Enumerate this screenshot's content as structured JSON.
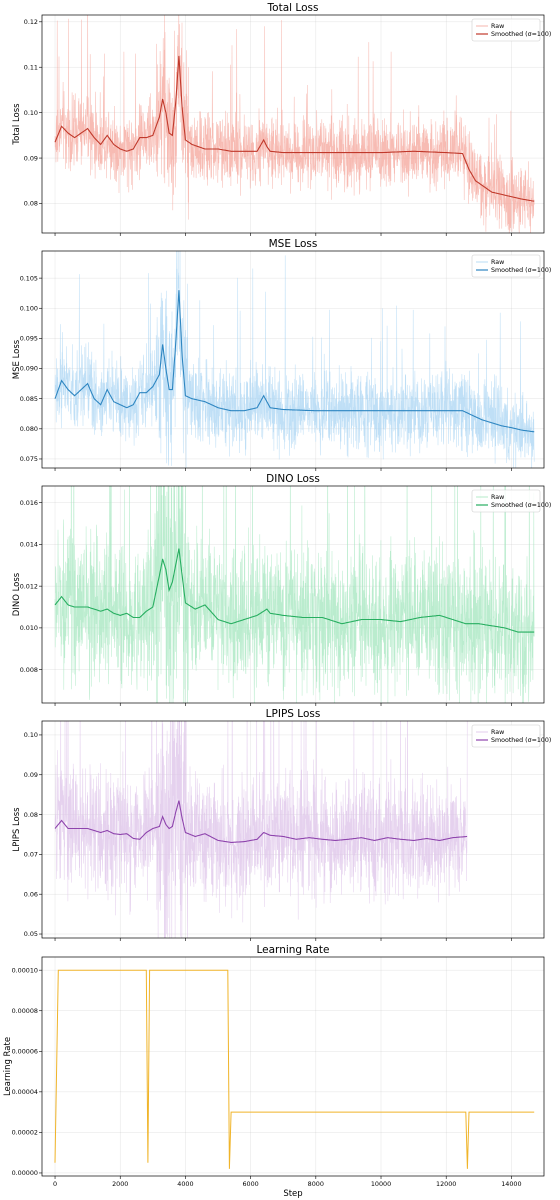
{
  "chart_data": [
    {
      "type": "line",
      "title": "Total Loss",
      "xlabel": "",
      "ylabel": "Total Loss",
      "xlim": [
        -400,
        15000
      ],
      "ylim": [
        0.0735,
        0.1215
      ],
      "yticks": [
        "0.08",
        "0.09",
        "0.10",
        "0.11",
        "0.12"
      ],
      "xticks_labeled": false,
      "grid": true,
      "legend": {
        "placement": "top-right",
        "entries": [
          "Raw",
          "Smoothed (σ=100)"
        ]
      },
      "raw_color": "#f4a49a",
      "smooth_color": "#c0392b",
      "raw_spread": 0.0065,
      "x_end": 14700,
      "series": [
        {
          "name": "Smoothed (σ=100)",
          "x": [
            0,
            200,
            400,
            600,
            800,
            1000,
            1200,
            1400,
            1600,
            1800,
            2000,
            2200,
            2400,
            2600,
            2800,
            3000,
            3200,
            3300,
            3400,
            3500,
            3600,
            3700,
            3800,
            3900,
            4000,
            4200,
            4600,
            5000,
            5400,
            5800,
            6200,
            6400,
            6500,
            6600,
            7000,
            8000,
            9000,
            10000,
            11000,
            12000,
            12500,
            12700,
            12900,
            13100,
            13400,
            13700,
            14000,
            14300,
            14700
          ],
          "y": [
            0.0935,
            0.097,
            0.0955,
            0.0945,
            0.0955,
            0.0965,
            0.0945,
            0.093,
            0.095,
            0.093,
            0.092,
            0.0915,
            0.092,
            0.0945,
            0.0945,
            0.095,
            0.099,
            0.103,
            0.1,
            0.0955,
            0.095,
            0.102,
            0.1125,
            0.101,
            0.094,
            0.093,
            0.092,
            0.092,
            0.0915,
            0.0915,
            0.0915,
            0.094,
            0.0925,
            0.0915,
            0.0912,
            0.0912,
            0.0912,
            0.0912,
            0.0915,
            0.0912,
            0.091,
            0.0875,
            0.085,
            0.084,
            0.0825,
            0.082,
            0.0815,
            0.081,
            0.0805
          ]
        }
      ]
    },
    {
      "type": "line",
      "title": "MSE Loss",
      "xlabel": "",
      "ylabel": "MSE Loss",
      "xlim": [
        -400,
        15000
      ],
      "ylim": [
        0.0735,
        0.1095
      ],
      "yticks": [
        "0.075",
        "0.080",
        "0.085",
        "0.090",
        "0.095",
        "0.100",
        "0.105"
      ],
      "xticks_labeled": false,
      "grid": true,
      "legend": {
        "placement": "top-right",
        "entries": [
          "Raw",
          "Smoothed (σ=100)"
        ]
      },
      "raw_color": "#a9d4f3",
      "smooth_color": "#2e86c1",
      "raw_spread": 0.0052,
      "x_end": 14700,
      "series": [
        {
          "name": "Smoothed (σ=100)",
          "x": [
            0,
            200,
            400,
            600,
            800,
            1000,
            1200,
            1400,
            1600,
            1800,
            2000,
            2200,
            2400,
            2600,
            2800,
            3000,
            3200,
            3300,
            3400,
            3500,
            3600,
            3700,
            3800,
            3900,
            4000,
            4200,
            4600,
            5000,
            5400,
            5800,
            6200,
            6400,
            6500,
            6600,
            7000,
            8000,
            9000,
            10000,
            11000,
            12000,
            12500,
            12700,
            12900,
            13100,
            13400,
            13700,
            14000,
            14300,
            14700
          ],
          "y": [
            0.085,
            0.088,
            0.0865,
            0.0855,
            0.0865,
            0.0875,
            0.085,
            0.084,
            0.0865,
            0.0845,
            0.084,
            0.0835,
            0.084,
            0.086,
            0.086,
            0.087,
            0.089,
            0.094,
            0.09,
            0.0865,
            0.0865,
            0.094,
            0.103,
            0.092,
            0.0855,
            0.085,
            0.0845,
            0.0835,
            0.083,
            0.083,
            0.0835,
            0.0855,
            0.0845,
            0.0835,
            0.0832,
            0.083,
            0.083,
            0.083,
            0.083,
            0.083,
            0.083,
            0.0825,
            0.082,
            0.0815,
            0.081,
            0.0805,
            0.0802,
            0.0798,
            0.0795
          ]
        }
      ]
    },
    {
      "type": "line",
      "title": "DINO Loss",
      "xlabel": "",
      "ylabel": "DINO Loss",
      "xlim": [
        -400,
        15000
      ],
      "ylim": [
        0.0064,
        0.0168
      ],
      "yticks": [
        "0.008",
        "0.010",
        "0.012",
        "0.014",
        "0.016"
      ],
      "xticks_labeled": false,
      "grid": true,
      "legend": {
        "placement": "top-right",
        "entries": [
          "Raw",
          "Smoothed (σ=100)"
        ]
      },
      "raw_color": "#a3e6bd",
      "smooth_color": "#27ae60",
      "raw_spread": 0.0028,
      "x_end": 14700,
      "series": [
        {
          "name": "Smoothed (σ=100)",
          "x": [
            0,
            200,
            400,
            600,
            800,
            1000,
            1200,
            1400,
            1600,
            1800,
            2000,
            2200,
            2400,
            2600,
            2800,
            3000,
            3200,
            3300,
            3400,
            3500,
            3600,
            3700,
            3800,
            3900,
            4000,
            4300,
            4600,
            5000,
            5400,
            5800,
            6200,
            6500,
            6600,
            7000,
            7600,
            8200,
            8800,
            9400,
            10000,
            10600,
            11200,
            11800,
            12200,
            12600,
            13000,
            13400,
            13800,
            14200,
            14700
          ],
          "y": [
            0.0111,
            0.0115,
            0.0111,
            0.011,
            0.011,
            0.011,
            0.0109,
            0.0108,
            0.0109,
            0.0107,
            0.0106,
            0.0107,
            0.0105,
            0.0105,
            0.0108,
            0.011,
            0.0125,
            0.0133,
            0.0128,
            0.0118,
            0.0122,
            0.013,
            0.0138,
            0.0125,
            0.0112,
            0.0109,
            0.0111,
            0.0104,
            0.0102,
            0.0104,
            0.0106,
            0.0109,
            0.0107,
            0.0106,
            0.0105,
            0.0105,
            0.0102,
            0.0104,
            0.0104,
            0.0103,
            0.0105,
            0.0106,
            0.0104,
            0.0102,
            0.0102,
            0.0101,
            0.01,
            0.0098,
            0.0098
          ]
        }
      ]
    },
    {
      "type": "line",
      "title": "LPIPS Loss",
      "xlabel": "",
      "ylabel": "LPIPS Loss",
      "xlim": [
        -400,
        15000
      ],
      "ylim": [
        0.049,
        0.1035
      ],
      "yticks": [
        "0.05",
        "0.06",
        "0.07",
        "0.08",
        "0.09",
        "0.10"
      ],
      "xticks_labeled": false,
      "grid": true,
      "legend": {
        "placement": "top-right",
        "entries": [
          "Raw",
          "Smoothed (σ=100)"
        ]
      },
      "raw_color": "#dcc1e8",
      "smooth_color": "#8e44ad",
      "raw_spread": 0.0125,
      "x_end": 12650,
      "series": [
        {
          "name": "Smoothed (σ=100)",
          "x": [
            0,
            200,
            400,
            600,
            800,
            1000,
            1200,
            1400,
            1600,
            1800,
            2000,
            2200,
            2400,
            2600,
            2800,
            3000,
            3200,
            3300,
            3400,
            3500,
            3600,
            3700,
            3800,
            3900,
            4000,
            4300,
            4600,
            5000,
            5400,
            5800,
            6200,
            6400,
            6600,
            7000,
            7400,
            7800,
            8200,
            8600,
            9000,
            9400,
            9800,
            10200,
            10600,
            11000,
            11400,
            11800,
            12200,
            12650
          ],
          "y": [
            0.0765,
            0.0785,
            0.0765,
            0.0765,
            0.0765,
            0.0765,
            0.076,
            0.0755,
            0.076,
            0.0752,
            0.075,
            0.0752,
            0.074,
            0.0738,
            0.0755,
            0.0765,
            0.077,
            0.0795,
            0.0775,
            0.0765,
            0.077,
            0.0805,
            0.0835,
            0.079,
            0.0755,
            0.0745,
            0.0752,
            0.0735,
            0.073,
            0.0732,
            0.0738,
            0.0755,
            0.0748,
            0.0745,
            0.0738,
            0.0742,
            0.0738,
            0.0735,
            0.0738,
            0.0742,
            0.0735,
            0.0742,
            0.0738,
            0.0735,
            0.074,
            0.0735,
            0.0742,
            0.0745
          ]
        }
      ]
    },
    {
      "type": "line",
      "title": "Learning Rate",
      "xlabel": "Step",
      "ylabel": "Learning Rate",
      "xlim": [
        -400,
        15000
      ],
      "ylim": [
        -1.5e-06,
        0.0001065
      ],
      "yticks": [
        "0.00000",
        "0.00002",
        "0.00004",
        "0.00006",
        "0.00008",
        "0.00010"
      ],
      "xticks": [
        "0",
        "2000",
        "4000",
        "6000",
        "8000",
        "10000",
        "12000",
        "14000"
      ],
      "xticks_labeled": true,
      "grid": true,
      "series": [
        {
          "name": "",
          "color": "#f0b429",
          "x": [
            0,
            100,
            2800,
            2850,
            2900,
            2950,
            5300,
            5350,
            5400,
            12600,
            12650,
            12700,
            14700
          ],
          "y": [
            5e-06,
            0.0001,
            0.0001,
            5e-06,
            0.0001,
            0.0001,
            0.0001,
            2e-06,
            3e-05,
            3e-05,
            2e-06,
            3e-05,
            3e-05
          ]
        }
      ]
    }
  ]
}
